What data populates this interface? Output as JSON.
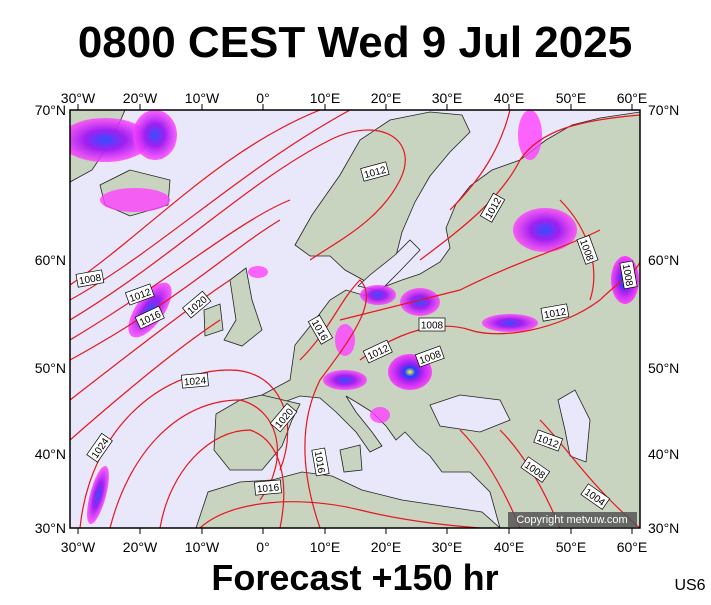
{
  "header": {
    "title": "0800 CEST Wed 9 Jul 2025"
  },
  "map": {
    "lon_labels": [
      "30°W",
      "20°W",
      "10°W",
      "0°",
      "10°E",
      "20°E",
      "30°E",
      "40°E",
      "50°E",
      "60°E"
    ],
    "lat_labels": [
      "70°N",
      "60°N",
      "50°N",
      "40°N",
      "30°N"
    ],
    "isobar_labels": [
      "1012",
      "1012",
      "1008",
      "1012",
      "1016",
      "1020",
      "1016",
      "1012",
      "1008",
      "1008",
      "1012",
      "1008",
      "1008",
      "1024",
      "1020",
      "1024",
      "1016",
      "1016",
      "1012",
      "1008",
      "1004"
    ],
    "copyright": "Copyright metvuw.com"
  },
  "footer": {
    "forecast": "Forecast +150 hr",
    "code": "US6"
  }
}
